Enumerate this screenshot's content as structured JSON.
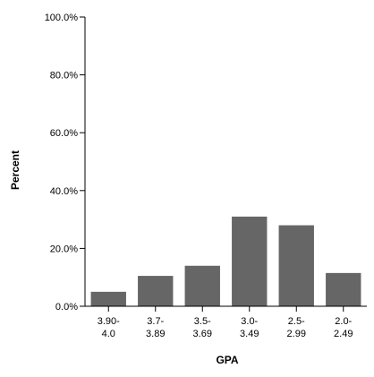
{
  "chart_data": {
    "type": "bar",
    "title": "",
    "xlabel": "GPA",
    "ylabel": "Percent",
    "categories": [
      [
        "3.90-",
        "4.0"
      ],
      [
        "3.7-",
        "3.89"
      ],
      [
        "3.5-",
        "3.69"
      ],
      [
        "3.0-",
        "3.49"
      ],
      [
        "2.5-",
        "2.99"
      ],
      [
        "2.0-",
        "2.49"
      ]
    ],
    "values": [
      5.0,
      10.5,
      14.0,
      31.0,
      28.0,
      11.5
    ],
    "ylim": [
      0,
      100
    ],
    "yticks": [
      "0.0%",
      "20.0%",
      "40.0%",
      "60.0%",
      "80.0%",
      "100.0%"
    ],
    "ytick_values": [
      0,
      20,
      40,
      60,
      80,
      100
    ],
    "grid": false,
    "bar_color": "#666666"
  }
}
